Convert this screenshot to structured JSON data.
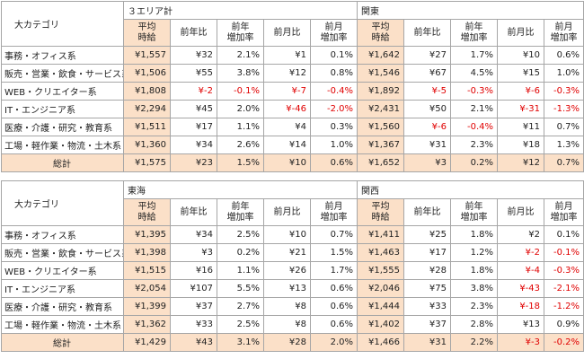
{
  "colors": {
    "shade": "#fbe0c8",
    "negative": "#e00000",
    "border": "#a6a6a6"
  },
  "category_header": "大カテゴリ",
  "col_headers": {
    "avg": "平均\n時給",
    "yoy": "前年比",
    "yoy_rate": "前年\n増加率",
    "mom": "前月比",
    "mom_rate": "前月\n増加率"
  },
  "tables": [
    {
      "regions": [
        "３エリア計",
        "関東"
      ],
      "rows": [
        {
          "category": "事務・オフィス系",
          "values": [
            "¥1,557",
            "¥32",
            "2.1%",
            "¥1",
            "0.1%",
            "¥1,642",
            "¥27",
            "1.7%",
            "¥10",
            "0.6%"
          ]
        },
        {
          "category": "販売・営業・飲食・サービス系",
          "values": [
            "¥1,506",
            "¥55",
            "3.8%",
            "¥12",
            "0.8%",
            "¥1,546",
            "¥67",
            "4.5%",
            "¥15",
            "1.0%"
          ]
        },
        {
          "category": "WEB・クリエイター系",
          "values": [
            "¥1,808",
            "¥-2",
            "-0.1%",
            "¥-7",
            "-0.4%",
            "¥1,892",
            "¥-5",
            "-0.3%",
            "¥-6",
            "-0.3%"
          ]
        },
        {
          "category": "IT・エンジニア系",
          "values": [
            "¥2,294",
            "¥45",
            "2.0%",
            "¥-46",
            "-2.0%",
            "¥2,431",
            "¥50",
            "2.1%",
            "¥-31",
            "-1.3%"
          ]
        },
        {
          "category": "医療・介護・研究・教育系",
          "values": [
            "¥1,511",
            "¥17",
            "1.1%",
            "¥4",
            "0.3%",
            "¥1,560",
            "¥-6",
            "-0.4%",
            "¥11",
            "0.7%"
          ]
        },
        {
          "category": "工場・軽作業・物流・土木系",
          "values": [
            "¥1,360",
            "¥34",
            "2.6%",
            "¥14",
            "1.0%",
            "¥1,367",
            "¥31",
            "2.3%",
            "¥18",
            "1.3%"
          ]
        }
      ],
      "total": {
        "label": "総計",
        "values": [
          "¥1,575",
          "¥23",
          "1.5%",
          "¥10",
          "0.6%",
          "¥1,652",
          "¥3",
          "0.2%",
          "¥12",
          "0.7%"
        ]
      }
    },
    {
      "regions": [
        "東海",
        "関西"
      ],
      "rows": [
        {
          "category": "事務・オフィス系",
          "values": [
            "¥1,395",
            "¥34",
            "2.5%",
            "¥10",
            "0.7%",
            "¥1,411",
            "¥25",
            "1.8%",
            "¥2",
            "0.1%"
          ]
        },
        {
          "category": "販売・営業・飲食・サービス系",
          "values": [
            "¥1,398",
            "¥3",
            "0.2%",
            "¥21",
            "1.5%",
            "¥1,463",
            "¥17",
            "1.2%",
            "¥-2",
            "-0.1%"
          ]
        },
        {
          "category": "WEB・クリエイター系",
          "values": [
            "¥1,515",
            "¥16",
            "1.1%",
            "¥26",
            "1.7%",
            "¥1,555",
            "¥28",
            "1.8%",
            "¥-4",
            "-0.3%"
          ]
        },
        {
          "category": "IT・エンジニア系",
          "values": [
            "¥2,054",
            "¥107",
            "5.5%",
            "¥13",
            "0.6%",
            "¥2,046",
            "¥75",
            "3.8%",
            "¥-43",
            "-2.1%"
          ]
        },
        {
          "category": "医療・介護・研究・教育系",
          "values": [
            "¥1,399",
            "¥37",
            "2.7%",
            "¥8",
            "0.6%",
            "¥1,444",
            "¥33",
            "2.3%",
            "¥-18",
            "-1.2%"
          ]
        },
        {
          "category": "工場・軽作業・物流・土木系",
          "values": [
            "¥1,362",
            "¥33",
            "2.5%",
            "¥8",
            "0.6%",
            "¥1,402",
            "¥37",
            "2.8%",
            "¥13",
            "0.9%"
          ]
        }
      ],
      "total": {
        "label": "総計",
        "values": [
          "¥1,429",
          "¥43",
          "3.1%",
          "¥28",
          "2.0%",
          "¥1,466",
          "¥31",
          "2.2%",
          "¥-3",
          "-0.2%"
        ]
      }
    }
  ]
}
